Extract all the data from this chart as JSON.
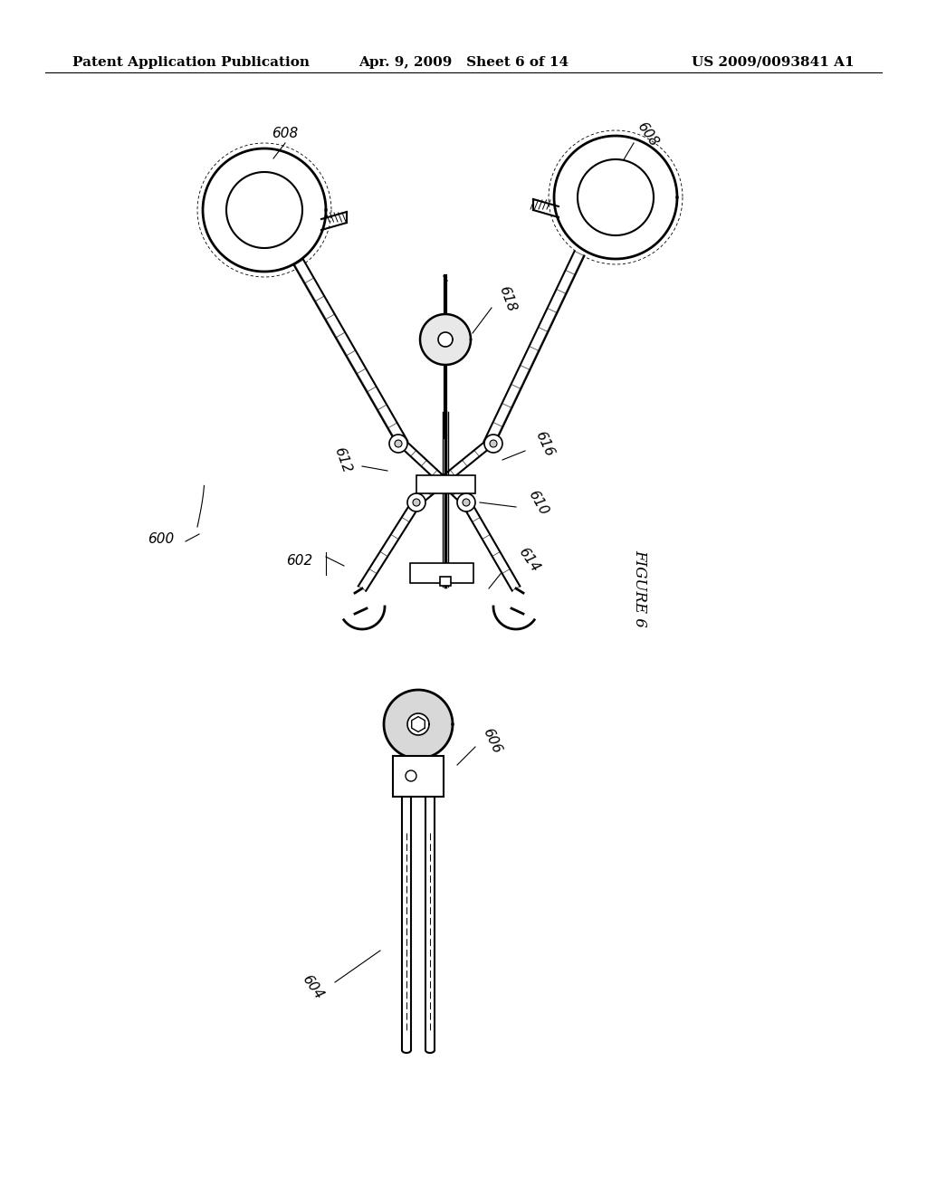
{
  "background_color": "#ffffff",
  "header_left": "Patent Application Publication",
  "header_center": "Apr. 9, 2009   Sheet 6 of 14",
  "header_right": "US 2009/0093841 A1",
  "header_fontsize": 11,
  "fig_width": 10.24,
  "fig_height": 13.2,
  "dpi": 100
}
